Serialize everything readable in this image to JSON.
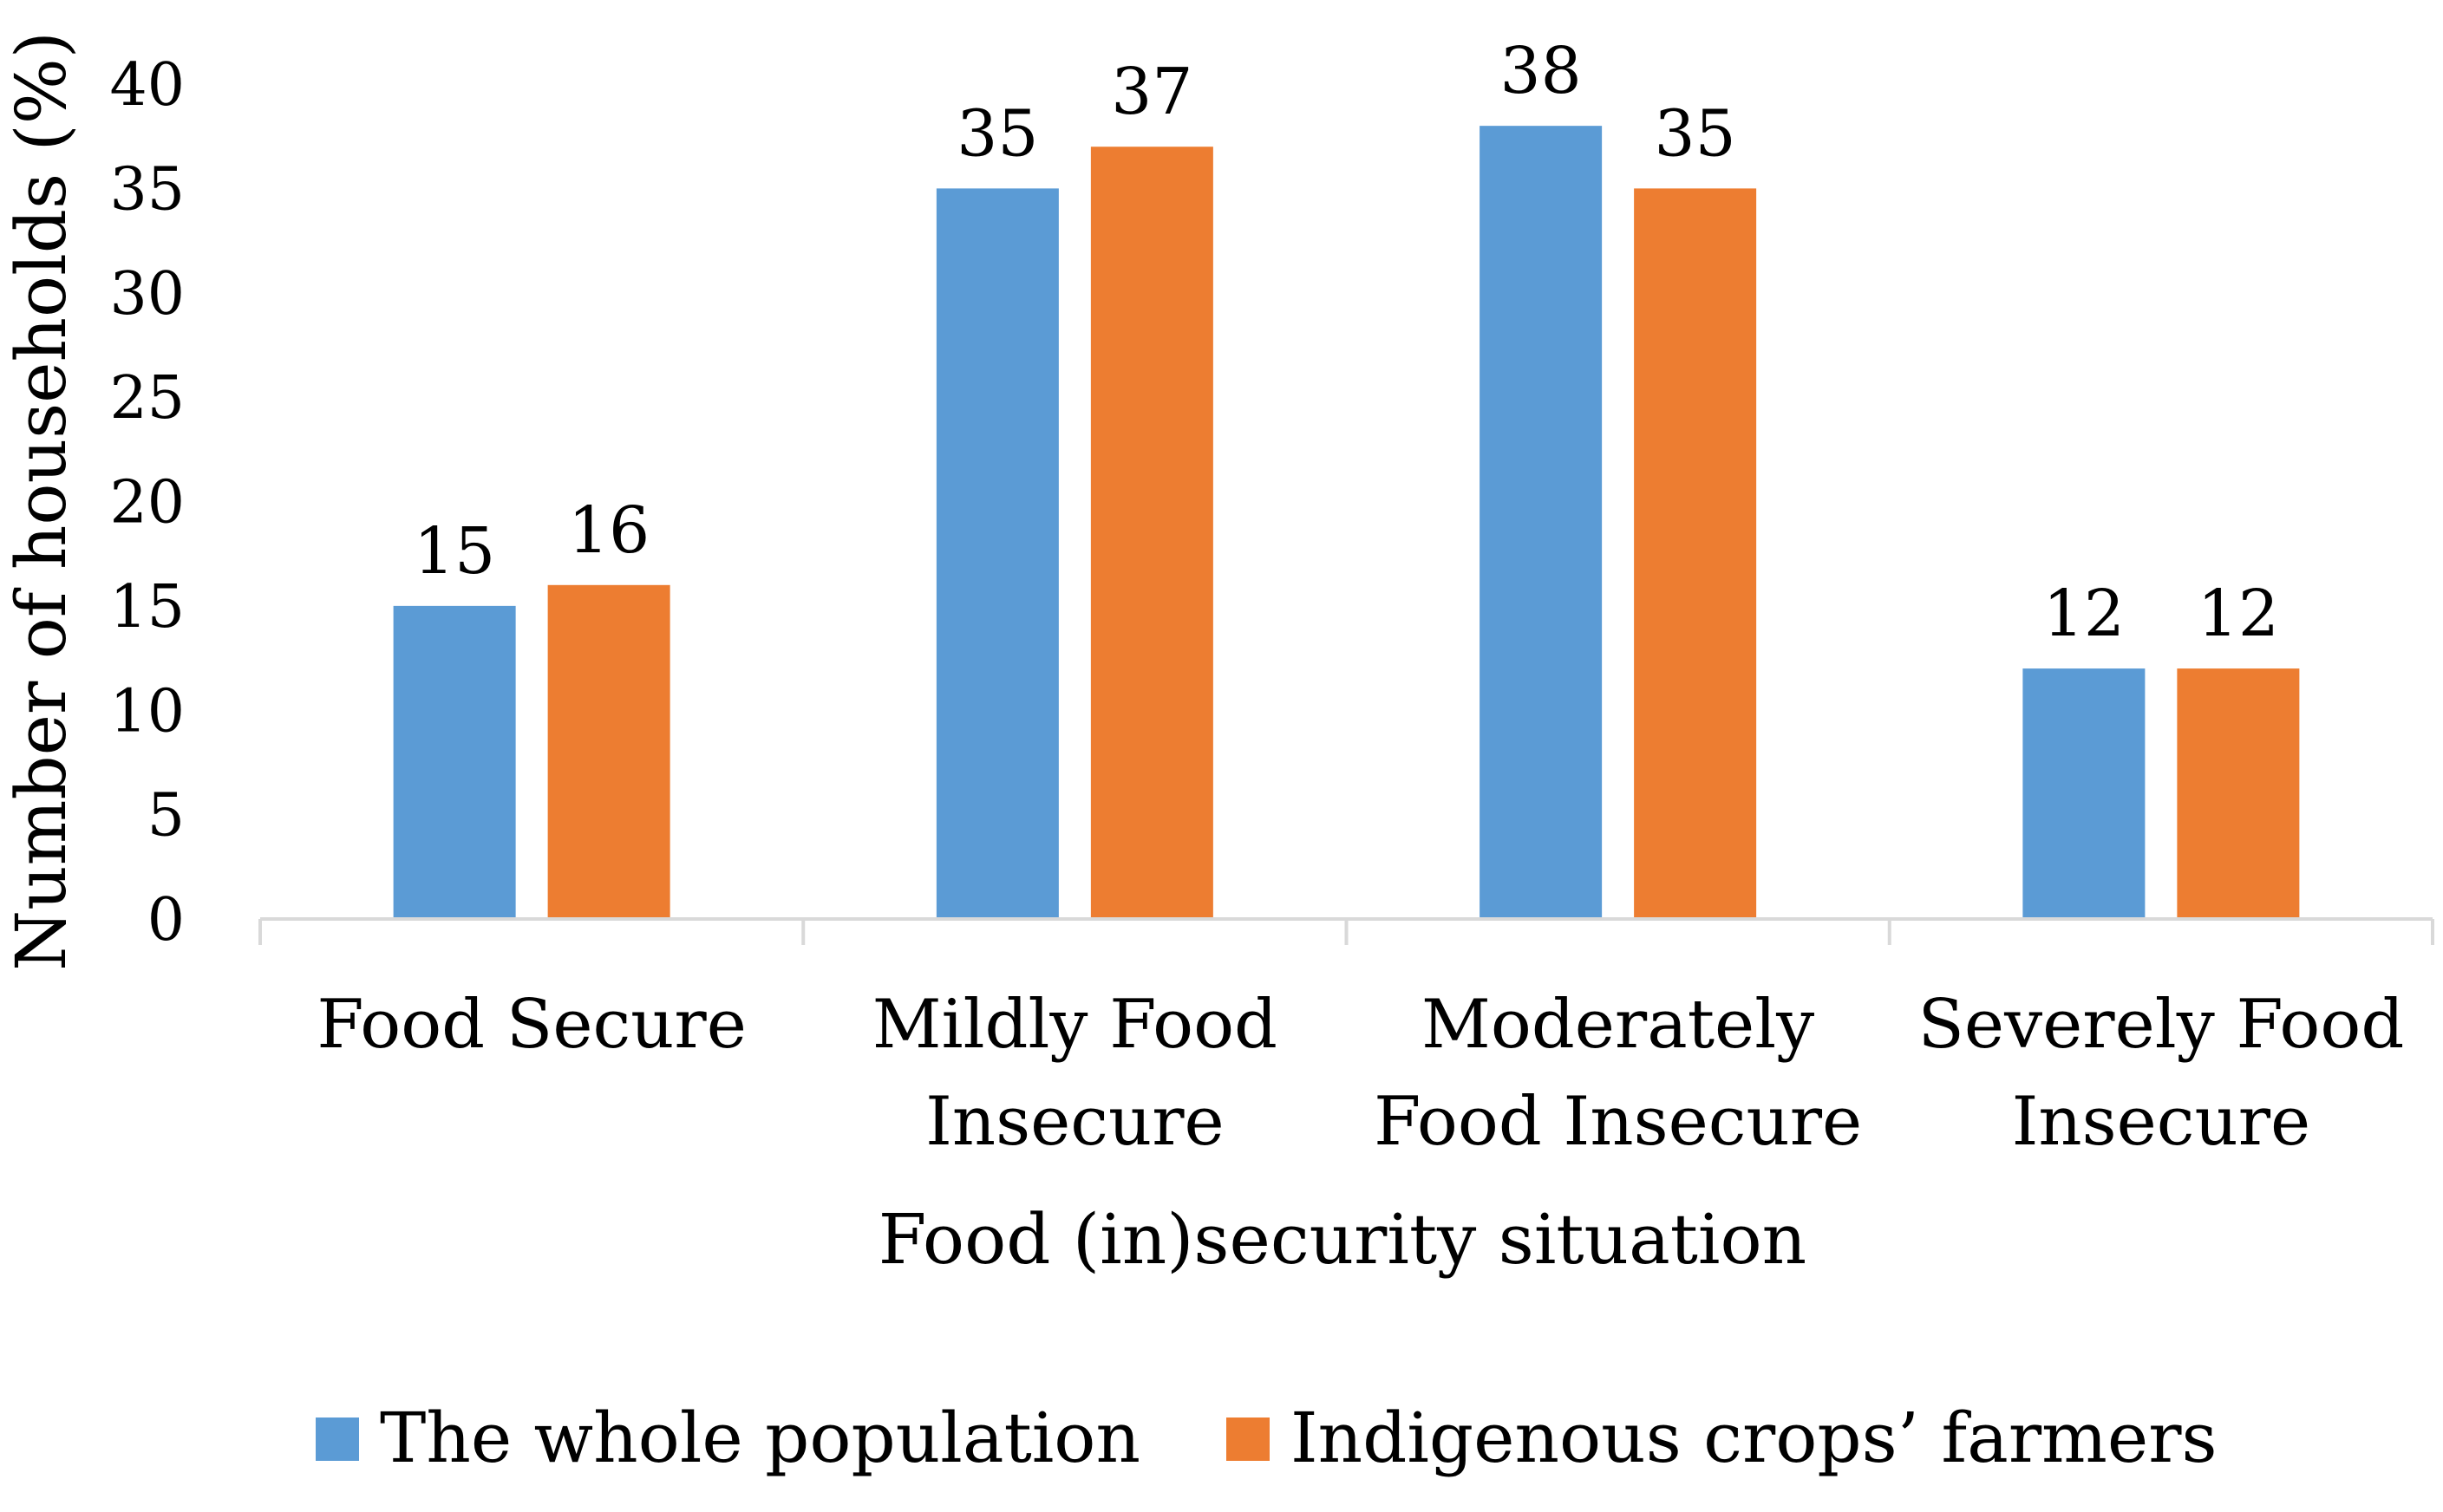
{
  "chart_data": {
    "type": "bar",
    "title": "",
    "xlabel": "Food (in)security situation",
    "ylabel": "Number of households (%)",
    "ylim": [
      0,
      40
    ],
    "ytick_step": 5,
    "yticks": [
      "0",
      "5",
      "10",
      "15",
      "20",
      "25",
      "30",
      "35",
      "40"
    ],
    "categories": [
      [
        "Food Secure"
      ],
      [
        "Mildly Food",
        "Insecure"
      ],
      [
        "Moderately",
        "Food Insecure"
      ],
      [
        "Severely Food",
        "Insecure"
      ]
    ],
    "series": [
      {
        "name": "The whole population",
        "color": "#5B9BD5",
        "values": [
          15,
          35,
          38,
          12
        ]
      },
      {
        "name": "Indigenous crops’ farmers",
        "color": "#ED7D31",
        "values": [
          16,
          37,
          35,
          12
        ]
      }
    ],
    "legend_position": "bottom",
    "grid": false
  }
}
